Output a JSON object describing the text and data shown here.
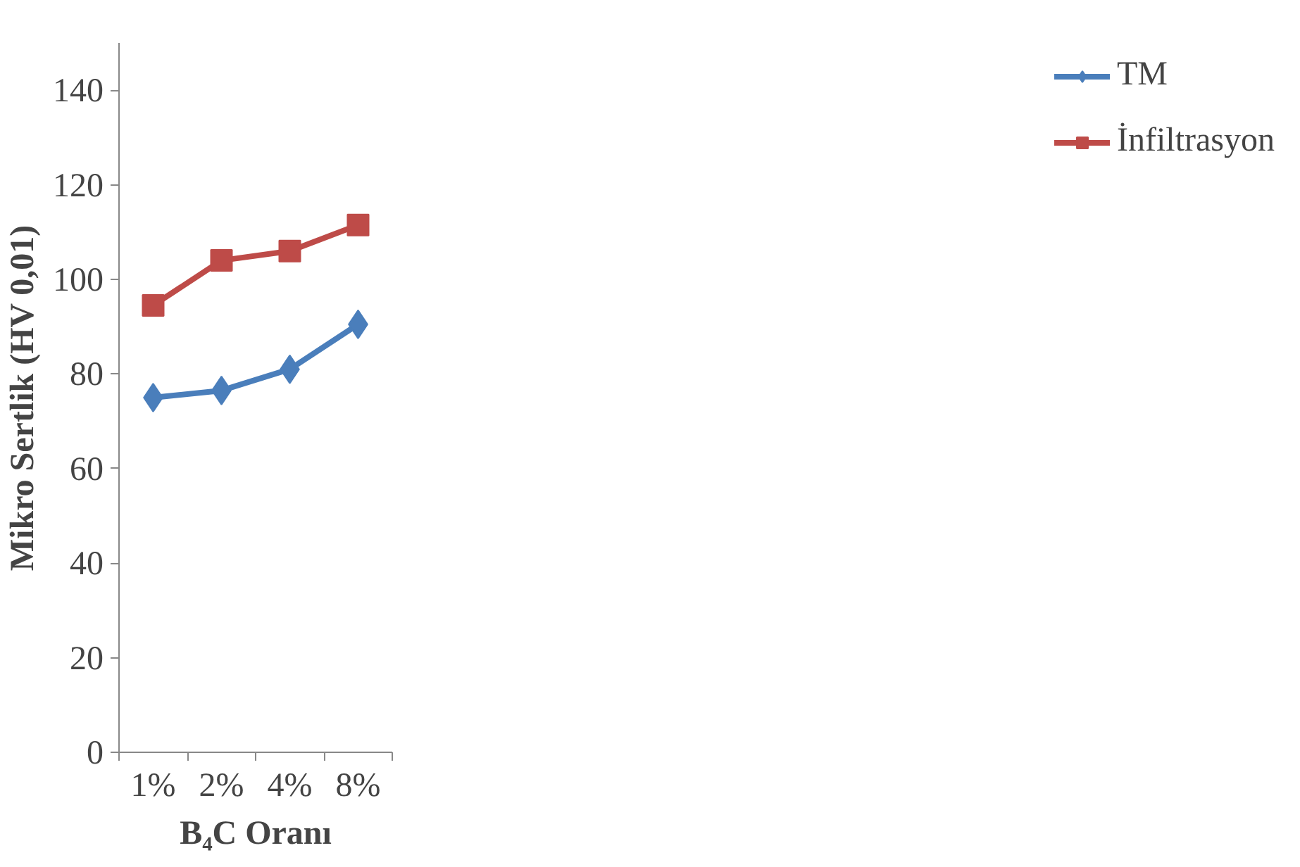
{
  "chart_data": {
    "type": "line",
    "xlabel": "B₄C Oranı",
    "ylabel": "Mikro Sertlik (HV 0,01)",
    "categories": [
      "1%",
      "2%",
      "4%",
      "8%"
    ],
    "series": [
      {
        "name": "TM",
        "color": "#4a7ebb",
        "marker": "diamond",
        "values": [
          75,
          76.5,
          81,
          90.5
        ]
      },
      {
        "name": "İnfiltrasyon",
        "color": "#be4b48",
        "marker": "square",
        "values": [
          94.5,
          104,
          106,
          111.5
        ]
      }
    ],
    "ylim": [
      0,
      150
    ],
    "yticks": [
      0,
      20,
      40,
      60,
      80,
      100,
      120,
      140
    ],
    "grid": false,
    "legend": "right",
    "line_style": "solid"
  }
}
